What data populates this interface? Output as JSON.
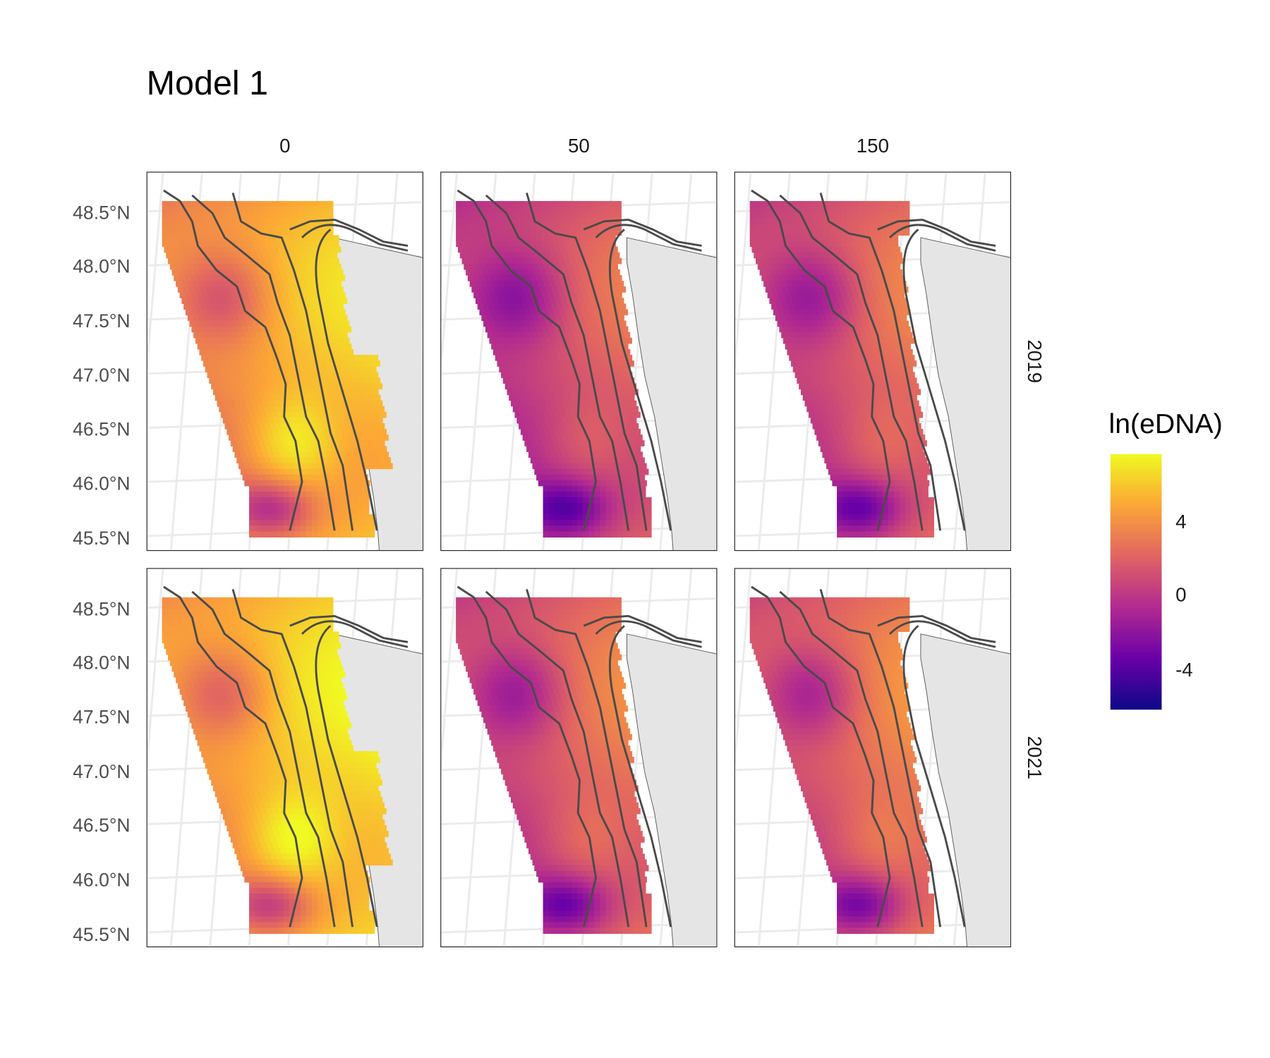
{
  "title": "Model 1",
  "columns": [
    "0",
    "50",
    "150"
  ],
  "rows": [
    "2019",
    "2021"
  ],
  "y_axis_labels": [
    "48.5°N",
    "48.0°N",
    "47.5°N",
    "47.0°N",
    "46.5°N",
    "46.0°N",
    "45.5°N"
  ],
  "legend": {
    "title": "ln(eDNA)",
    "labels": [
      "4",
      "0",
      "-4"
    ],
    "colors": [
      "#0d0887",
      "#6a00a8",
      "#b12a90",
      "#e16462",
      "#fca636",
      "#f0f921"
    ]
  },
  "land_color": "#e5e5e5",
  "contour_color": "#4a4a4a"
}
